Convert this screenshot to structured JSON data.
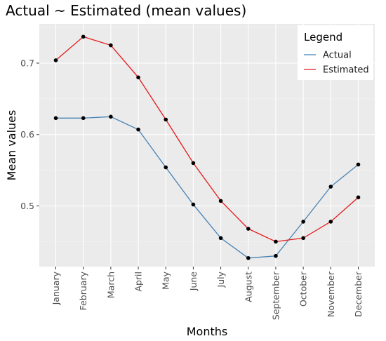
{
  "chart_data": {
    "type": "line",
    "title": "Actual ~ Estimated (mean values)",
    "xlabel": "Months",
    "ylabel": "Mean values",
    "categories": [
      "January",
      "February",
      "March",
      "April",
      "May",
      "June",
      "July",
      "August",
      "September",
      "October",
      "November",
      "December"
    ],
    "series": [
      {
        "name": "Actual",
        "color": "#4682b4",
        "values": [
          0.623,
          0.623,
          0.625,
          0.607,
          0.554,
          0.502,
          0.455,
          0.427,
          0.43,
          0.478,
          0.527,
          0.558
        ]
      },
      {
        "name": "Estimated",
        "color": "#e41a1c",
        "values": [
          0.704,
          0.737,
          0.725,
          0.68,
          0.621,
          0.56,
          0.507,
          0.468,
          0.45,
          0.455,
          0.478,
          0.512
        ]
      }
    ],
    "yticks": [
      0.5,
      0.6,
      0.7
    ],
    "ytick_labels": [
      "0.5",
      "0.6",
      "0.7"
    ],
    "ylim": [
      0.415,
      0.755
    ],
    "grid": true,
    "legend": {
      "title": "Legend",
      "position": "top-right"
    },
    "background": "#ebebeb",
    "point_color": "#000000"
  }
}
